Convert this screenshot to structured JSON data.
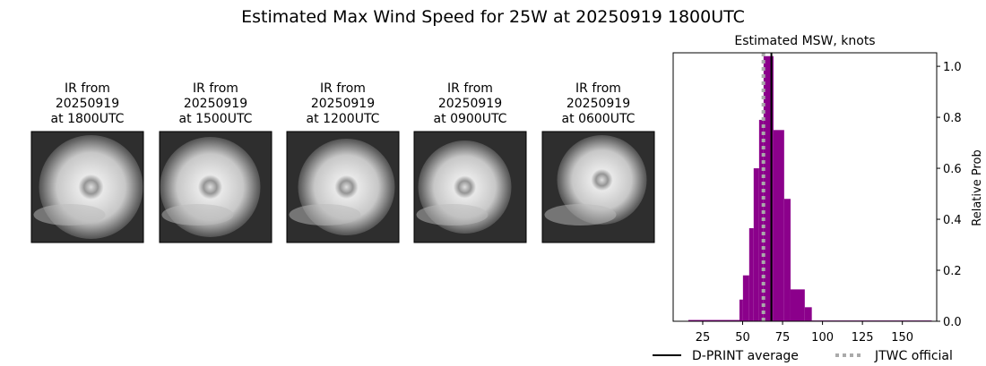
{
  "title": "Estimated Max Wind Speed for 25W at 20250919 1800UTC",
  "images": [
    {
      "lines": [
        "IR from",
        "20250919",
        "at 1800UTC"
      ]
    },
    {
      "lines": [
        "IR from",
        "20250919",
        "at 1500UTC"
      ]
    },
    {
      "lines": [
        "IR from",
        "20250919",
        "at 1200UTC"
      ]
    },
    {
      "lines": [
        "IR from",
        "20250919",
        "at 0900UTC"
      ]
    },
    {
      "lines": [
        "IR from",
        "20250919",
        "at 0600UTC"
      ]
    }
  ],
  "chart_data": {
    "type": "histogram",
    "title": "Estimated MSW, knots",
    "y_label": "Relative Prob",
    "bins": [
      16,
      48,
      50.2,
      54.1,
      56.9,
      60.3,
      63.1,
      69.3,
      76,
      80,
      88.9,
      93.3,
      168.4
    ],
    "counts": [
      0.005,
      0.085,
      0.18,
      0.365,
      0.6,
      0.79,
      1.04,
      0.75,
      0.48,
      0.125,
      0.055,
      0.003
    ],
    "color": "#8b008b",
    "xlim": [
      6.5,
      171.5
    ],
    "xticks": [
      25,
      50,
      75,
      100,
      125,
      150
    ],
    "ylim": [
      0,
      1.053
    ],
    "yticks": [
      {
        "value": 0,
        "label": "0.0"
      },
      0.2,
      0.4,
      0.6,
      0.8,
      {
        "value": 1,
        "label": "1.0"
      }
    ],
    "lines": [
      {
        "name": "D-PRINT average",
        "x": 68,
        "color": "#000000",
        "style": "solid"
      },
      {
        "name": "JTWC official",
        "x": 63,
        "color": "#aaaaaa",
        "style": "dotted"
      }
    ],
    "legend": "bottom"
  }
}
